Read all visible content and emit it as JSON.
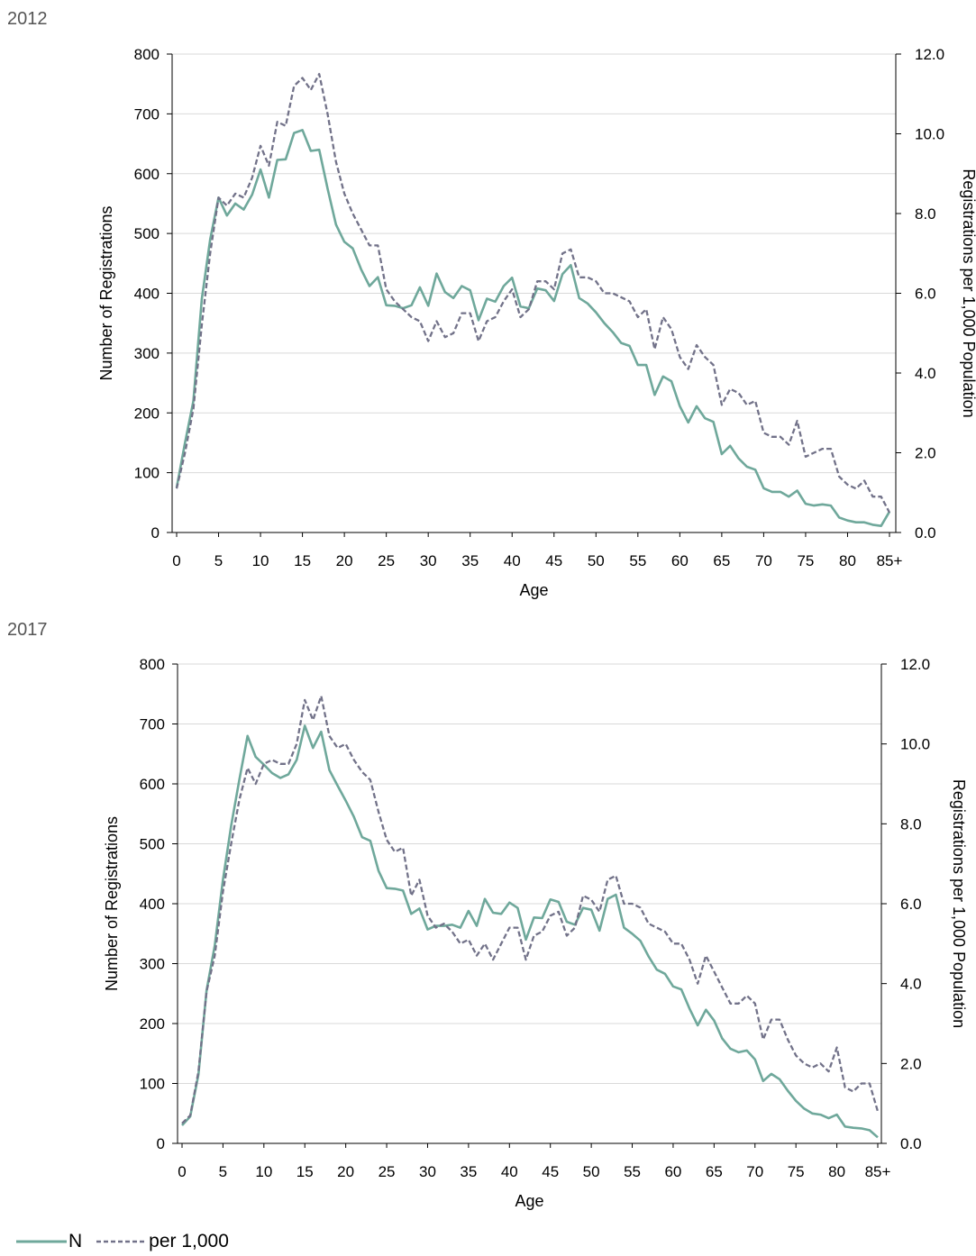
{
  "colors": {
    "n": "#6fa89b",
    "per1000": "#727289",
    "grid": "#d9d9d9",
    "axis": "#000000"
  },
  "legend": {
    "n_label": "N",
    "per_label": "per 1,000"
  },
  "chart_data": [
    {
      "type": "line",
      "title": "2012",
      "xlabel": "Age",
      "ylabel": "Number of Registrations",
      "y2label": "Registrations per 1,000 Population",
      "ylim": [
        0,
        800
      ],
      "y2lim": [
        0,
        12
      ],
      "yticks": [
        "0",
        "100",
        "200",
        "300",
        "400",
        "500",
        "600",
        "700",
        "800"
      ],
      "y2ticks": [
        "0.0",
        "2.0",
        "4.0",
        "6.0",
        "8.0",
        "10.0",
        "12.0"
      ],
      "xticks": [
        "0",
        "5",
        "10",
        "15",
        "20",
        "25",
        "30",
        "35",
        "40",
        "45",
        "50",
        "55",
        "60",
        "65",
        "70",
        "75",
        "80",
        "85+"
      ],
      "x_range": [
        0,
        85
      ],
      "series": [
        {
          "name": "N",
          "axis": "left",
          "x": [
            0,
            1,
            2,
            3,
            4,
            5,
            6,
            7,
            8,
            9,
            10,
            11,
            12,
            13,
            14,
            15,
            16,
            17,
            18,
            19,
            20,
            21,
            22,
            23,
            24,
            25,
            26,
            27,
            28,
            29,
            30,
            31,
            32,
            33,
            34,
            35,
            36,
            37,
            38,
            39,
            40,
            41,
            42,
            43,
            44,
            45,
            46,
            47,
            48,
            49,
            50,
            51,
            52,
            53,
            54,
            55,
            56,
            57,
            58,
            59,
            60,
            61,
            62,
            63,
            64,
            65,
            66,
            67,
            68,
            69,
            70,
            71,
            72,
            73,
            74,
            75,
            76,
            77,
            78,
            79,
            80,
            81,
            82,
            83,
            84,
            85
          ],
          "values": [
            75,
            150,
            220,
            390,
            490,
            560,
            530,
            550,
            540,
            565,
            607,
            560,
            623,
            624,
            668,
            673,
            638,
            640,
            575,
            515,
            486,
            475,
            440,
            412,
            427,
            380,
            379,
            375,
            380,
            410,
            379,
            433,
            402,
            392,
            412,
            405,
            355,
            391,
            386,
            412,
            426,
            378,
            375,
            408,
            405,
            387,
            432,
            447,
            392,
            383,
            368,
            350,
            335,
            317,
            312,
            280,
            280,
            230,
            261,
            253,
            211,
            184,
            211,
            191,
            185,
            131,
            145,
            124,
            110,
            105,
            74,
            68,
            68,
            60,
            70,
            48,
            45,
            47,
            45,
            25,
            20,
            17,
            17,
            13,
            11,
            35
          ]
        },
        {
          "name": "per 1,000",
          "axis": "right",
          "x": [
            0,
            1,
            2,
            3,
            4,
            5,
            6,
            7,
            8,
            9,
            10,
            11,
            12,
            13,
            14,
            15,
            16,
            17,
            18,
            19,
            20,
            21,
            22,
            23,
            24,
            25,
            26,
            27,
            28,
            29,
            30,
            31,
            32,
            33,
            34,
            35,
            36,
            37,
            38,
            39,
            40,
            41,
            42,
            43,
            44,
            45,
            46,
            47,
            48,
            49,
            50,
            51,
            52,
            53,
            54,
            55,
            56,
            57,
            58,
            59,
            60,
            61,
            62,
            63,
            64,
            65,
            66,
            67,
            68,
            69,
            70,
            71,
            72,
            73,
            74,
            75,
            76,
            77,
            78,
            79,
            80,
            81,
            82,
            83,
            84,
            85
          ],
          "values": [
            1.1,
            2.0,
            3.1,
            5.2,
            7.0,
            8.4,
            8.2,
            8.5,
            8.4,
            8.9,
            9.7,
            9.2,
            10.3,
            10.2,
            11.2,
            11.4,
            11.1,
            11.5,
            10.5,
            9.3,
            8.5,
            8.0,
            7.6,
            7.2,
            7.2,
            6.1,
            5.8,
            5.6,
            5.4,
            5.3,
            4.8,
            5.3,
            4.9,
            5.0,
            5.5,
            5.5,
            4.8,
            5.3,
            5.4,
            5.8,
            6.1,
            5.4,
            5.6,
            6.3,
            6.3,
            6.1,
            7.0,
            7.1,
            6.4,
            6.4,
            6.3,
            6.0,
            6.0,
            5.9,
            5.8,
            5.4,
            5.6,
            4.6,
            5.4,
            5.1,
            4.4,
            4.1,
            4.7,
            4.4,
            4.2,
            3.2,
            3.6,
            3.5,
            3.2,
            3.3,
            2.5,
            2.4,
            2.4,
            2.2,
            2.8,
            1.9,
            2.0,
            2.1,
            2.1,
            1.4,
            1.2,
            1.1,
            1.3,
            0.9,
            0.9,
            0.5
          ]
        }
      ]
    },
    {
      "type": "line",
      "title": "2017",
      "xlabel": "Age",
      "ylabel": "Number of Registrations",
      "y2label": "Registrations per 1,000 Population",
      "ylim": [
        0,
        800
      ],
      "y2lim": [
        0,
        12
      ],
      "yticks": [
        "0",
        "100",
        "200",
        "300",
        "400",
        "500",
        "600",
        "700",
        "800"
      ],
      "y2ticks": [
        "0.0",
        "2.0",
        "4.0",
        "6.0",
        "8.0",
        "10.0",
        "12.0"
      ],
      "xticks": [
        "0",
        "5",
        "10",
        "15",
        "20",
        "25",
        "30",
        "35",
        "40",
        "45",
        "50",
        "55",
        "60",
        "65",
        "70",
        "75",
        "80",
        "85+"
      ],
      "x_range": [
        0,
        85
      ],
      "series": [
        {
          "name": "N",
          "axis": "left",
          "x": [
            0,
            1,
            2,
            3,
            4,
            5,
            6,
            7,
            8,
            9,
            10,
            11,
            12,
            13,
            14,
            15,
            16,
            17,
            18,
            19,
            20,
            21,
            22,
            23,
            24,
            25,
            26,
            27,
            28,
            29,
            30,
            31,
            32,
            33,
            34,
            35,
            36,
            37,
            38,
            39,
            40,
            41,
            42,
            43,
            44,
            45,
            46,
            47,
            48,
            49,
            50,
            51,
            52,
            53,
            54,
            55,
            56,
            57,
            58,
            59,
            60,
            61,
            62,
            63,
            64,
            65,
            66,
            67,
            68,
            69,
            70,
            71,
            72,
            73,
            74,
            75,
            76,
            77,
            78,
            79,
            80,
            81,
            82,
            83,
            84,
            85
          ],
          "values": [
            30,
            45,
            115,
            255,
            330,
            440,
            530,
            607,
            680,
            645,
            632,
            618,
            610,
            616,
            640,
            697,
            660,
            687,
            623,
            597,
            572,
            545,
            511,
            505,
            455,
            426,
            425,
            422,
            383,
            392,
            357,
            363,
            363,
            365,
            360,
            388,
            363,
            408,
            385,
            383,
            402,
            393,
            340,
            377,
            376,
            407,
            403,
            370,
            365,
            393,
            390,
            355,
            408,
            415,
            360,
            350,
            338,
            312,
            290,
            283,
            262,
            257,
            225,
            197,
            223,
            205,
            175,
            158,
            152,
            155,
            140,
            104,
            116,
            107,
            88,
            71,
            58,
            50,
            48,
            42,
            48,
            28,
            26,
            25,
            22,
            10
          ]
        },
        {
          "name": "per 1,000",
          "axis": "right",
          "x": [
            0,
            1,
            2,
            3,
            4,
            5,
            6,
            7,
            8,
            9,
            10,
            11,
            12,
            13,
            14,
            15,
            16,
            17,
            18,
            19,
            20,
            21,
            22,
            23,
            24,
            25,
            26,
            27,
            28,
            29,
            30,
            31,
            32,
            33,
            34,
            35,
            36,
            37,
            38,
            39,
            40,
            41,
            42,
            43,
            44,
            45,
            46,
            47,
            48,
            49,
            50,
            51,
            52,
            53,
            54,
            55,
            56,
            57,
            58,
            59,
            60,
            61,
            62,
            63,
            64,
            65,
            66,
            67,
            68,
            69,
            70,
            71,
            72,
            73,
            74,
            75,
            76,
            77,
            78,
            79,
            80,
            81,
            82,
            83,
            84,
            85
          ],
          "values": [
            0.5,
            0.7,
            1.8,
            3.8,
            4.7,
            6.3,
            7.5,
            8.6,
            9.4,
            9.0,
            9.5,
            9.6,
            9.5,
            9.5,
            10.0,
            11.1,
            10.6,
            11.2,
            10.2,
            9.9,
            10.0,
            9.6,
            9.3,
            9.1,
            8.3,
            7.6,
            7.3,
            7.4,
            6.2,
            6.6,
            5.7,
            5.4,
            5.5,
            5.3,
            5.0,
            5.1,
            4.7,
            5.0,
            4.6,
            5.0,
            5.4,
            5.4,
            4.6,
            5.2,
            5.3,
            5.7,
            5.8,
            5.2,
            5.4,
            6.2,
            6.1,
            5.8,
            6.6,
            6.7,
            6.0,
            6.0,
            5.9,
            5.5,
            5.4,
            5.3,
            5.0,
            5.0,
            4.6,
            4.0,
            4.7,
            4.3,
            3.9,
            3.5,
            3.5,
            3.7,
            3.5,
            2.6,
            3.1,
            3.1,
            2.6,
            2.2,
            2.0,
            1.9,
            2.0,
            1.8,
            2.4,
            1.4,
            1.3,
            1.5,
            1.5,
            0.8
          ]
        }
      ]
    }
  ]
}
